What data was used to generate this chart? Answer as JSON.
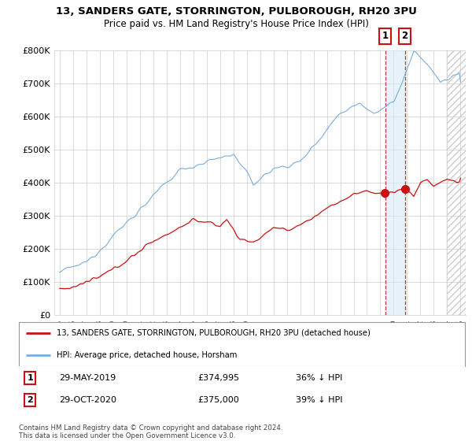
{
  "title_line1": "13, SANDERS GATE, STORRINGTON, PULBOROUGH, RH20 3PU",
  "title_line2": "Price paid vs. HM Land Registry's House Price Index (HPI)",
  "ylim": [
    0,
    800000
  ],
  "yticks": [
    0,
    100000,
    200000,
    300000,
    400000,
    500000,
    600000,
    700000,
    800000
  ],
  "ytick_labels": [
    "£0",
    "£100K",
    "£200K",
    "£300K",
    "£400K",
    "£500K",
    "£600K",
    "£700K",
    "£800K"
  ],
  "hpi_color": "#7aaddc",
  "price_color": "#cc1111",
  "sale1": {
    "date": "29-MAY-2019",
    "price": 374995,
    "label": "36% ↓ HPI",
    "num": "1",
    "year": 2019.37
  },
  "sale2": {
    "date": "29-OCT-2020",
    "price": 375000,
    "label": "39% ↓ HPI",
    "num": "2",
    "year": 2020.83
  },
  "legend_label_red": "13, SANDERS GATE, STORRINGTON, PULBOROUGH, RH20 3PU (detached house)",
  "legend_label_blue": "HPI: Average price, detached house, Horsham",
  "footer": "Contains HM Land Registry data © Crown copyright and database right 2024.\nThis data is licensed under the Open Government Licence v3.0.",
  "background_color": "#ffffff",
  "grid_color": "#cccccc",
  "hatch_color": "#cccccc"
}
